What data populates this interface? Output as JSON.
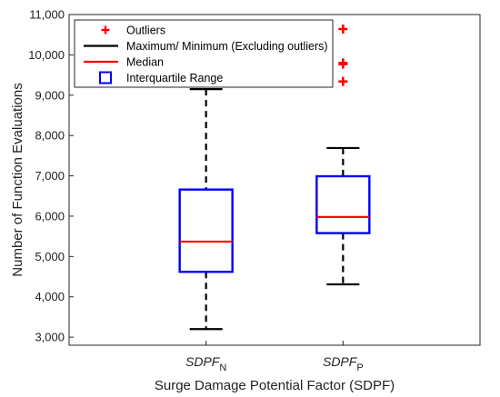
{
  "chart_data": {
    "type": "boxplot",
    "title": "",
    "xlabel": "Surge Damage Potential Factor (SDPF)",
    "ylabel": "Number of Function Evaluations",
    "ylim": [
      2800,
      11000
    ],
    "yticks": [
      3000,
      4000,
      5000,
      6000,
      7000,
      8000,
      9000,
      10000,
      11000
    ],
    "ytick_labels": [
      "3,000",
      "4,000",
      "5,000",
      "6,000",
      "7,000",
      "8,000",
      "9,000",
      "10,000",
      "11,000"
    ],
    "categories": [
      {
        "base": "SDPF",
        "sub": "N"
      },
      {
        "base": "SDPF",
        "sub": "P"
      }
    ],
    "boxes": [
      {
        "whisker_low": 3200,
        "q1": 4620,
        "median": 5370,
        "q3": 6660,
        "whisker_high": 9150,
        "outliers": []
      },
      {
        "whisker_low": 4310,
        "q1": 5580,
        "median": 5980,
        "q3": 6990,
        "whisker_high": 7690,
        "outliers": [
          9340,
          9770,
          9800,
          10640
        ]
      }
    ],
    "legend": {
      "position": "top-left",
      "entries": [
        "Outliers",
        "Maximum/ Minimum (Excluding outliers)",
        "Median",
        "Interquartile Range"
      ]
    },
    "colors": {
      "outlier": "#ff0000",
      "whisker": "#000000",
      "median": "#ff0000",
      "box": "#0000ff"
    },
    "grid": false
  }
}
